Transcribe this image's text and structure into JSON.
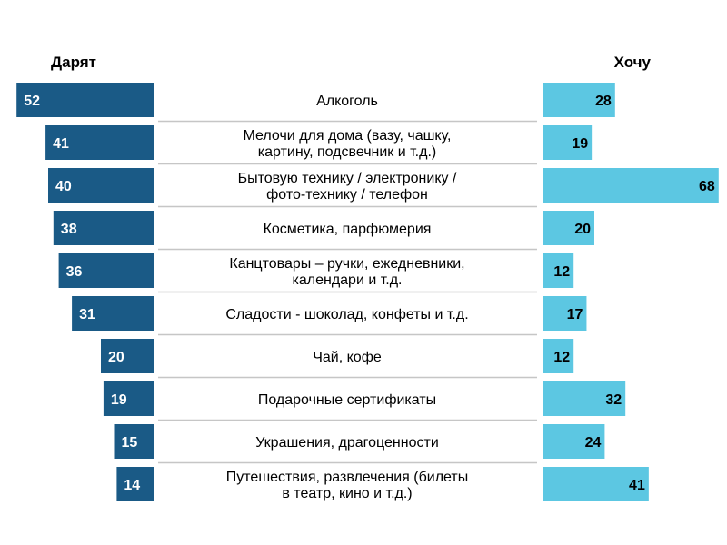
{
  "chart_data": {
    "type": "bar",
    "layout": "butterfly",
    "categories": [
      [
        "Алкоголь"
      ],
      [
        "Мелочи для дома (вазу, чашку,",
        "картину, подсвечник и т.д.)"
      ],
      [
        "Бытовую технику / электронику /",
        "фото-технику / телефон"
      ],
      [
        "Косметика, парфюмерия"
      ],
      [
        "Канцтовары – ручки, ежедневники,",
        "календари и т.д."
      ],
      [
        "Сладости - шоколад, конфеты и т.д."
      ],
      [
        "Чай, кофе"
      ],
      [
        "Подарочные сертификаты"
      ],
      [
        "Украшения, драгоценности"
      ],
      [
        "Путешествия, развлечения (билеты",
        "в театр, кино и т.д.)"
      ]
    ],
    "series": [
      {
        "name": "Дарят",
        "values": [
          52,
          41,
          40,
          38,
          36,
          31,
          20,
          19,
          15,
          14
        ],
        "color": "#1a5a86",
        "side": "left"
      },
      {
        "name": "Хочу",
        "values": [
          28,
          19,
          68,
          20,
          12,
          17,
          12,
          32,
          24,
          41
        ],
        "color": "#5cc7e2",
        "side": "right"
      }
    ],
    "grid_color": "#c6c6c6"
  }
}
